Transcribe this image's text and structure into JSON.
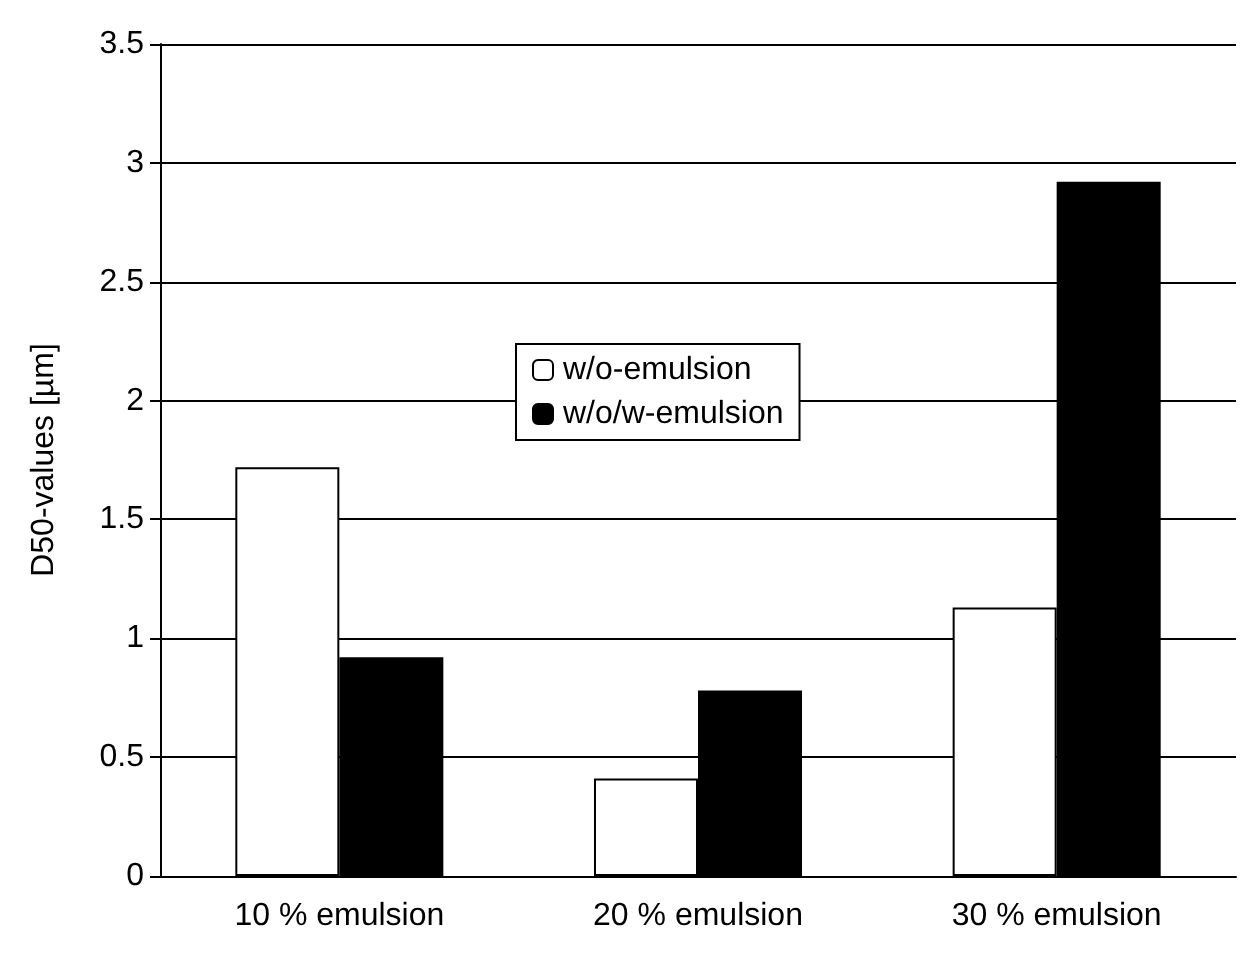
{
  "chart_data": {
    "type": "bar",
    "ylabel": "D50-values [µm]",
    "categories": [
      "10 % emulsion",
      "20 % emulsion",
      "30 % emulsion"
    ],
    "series": [
      {
        "name": "w/o-emulsion",
        "color": "#ffffff",
        "values": [
          1.72,
          0.41,
          1.13
        ]
      },
      {
        "name": "w/o/w-emulsion",
        "color": "#000000",
        "values": [
          0.92,
          0.78,
          2.92
        ]
      }
    ],
    "ylim": [
      0,
      3.5
    ],
    "yticks": [
      0,
      0.5,
      1,
      1.5,
      2,
      2.5,
      3,
      3.5
    ],
    "grid": "y",
    "legend": "center"
  }
}
